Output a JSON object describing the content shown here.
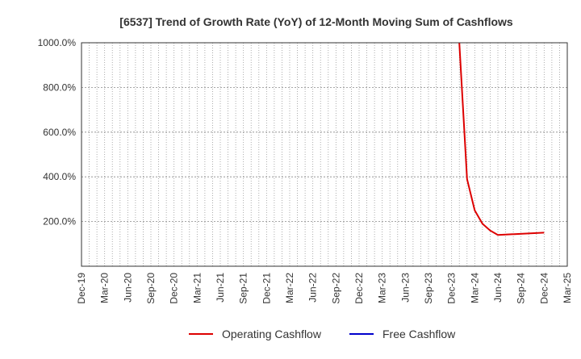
{
  "chart_data": {
    "type": "line",
    "title": "[6537]  Trend of Growth Rate (YoY) of 12-Month Moving Sum of Cashflows",
    "xlabel": "",
    "ylabel": "",
    "ylim": [
      0,
      1000
    ],
    "y_ticks": [
      200,
      400,
      600,
      800,
      1000
    ],
    "y_tick_labels": [
      "200.0%",
      "400.0%",
      "600.0%",
      "800.0%",
      "1000.0%"
    ],
    "x_tick_labels": [
      "Dec-19",
      "Mar-20",
      "Jun-20",
      "Sep-20",
      "Dec-20",
      "Mar-21",
      "Jun-21",
      "Sep-21",
      "Dec-21",
      "Mar-22",
      "Jun-22",
      "Sep-22",
      "Dec-22",
      "Mar-23",
      "Jun-23",
      "Sep-23",
      "Dec-23",
      "Mar-24",
      "Jun-24",
      "Sep-24",
      "Dec-24",
      "Mar-25"
    ],
    "grid": true,
    "legend_position": "bottom",
    "series": [
      {
        "name": "Operating Cashflow",
        "color": "#dd0000",
        "points": [
          [
            "2024-01",
            1000
          ],
          [
            "2024-02",
            390
          ],
          [
            "2024-03",
            250
          ],
          [
            "2024-04",
            190
          ],
          [
            "2024-05",
            160
          ],
          [
            "2024-06",
            140
          ],
          [
            "2024-12",
            150
          ]
        ]
      },
      {
        "name": "Free Cashflow",
        "color": "#0000cc",
        "points": []
      }
    ]
  }
}
